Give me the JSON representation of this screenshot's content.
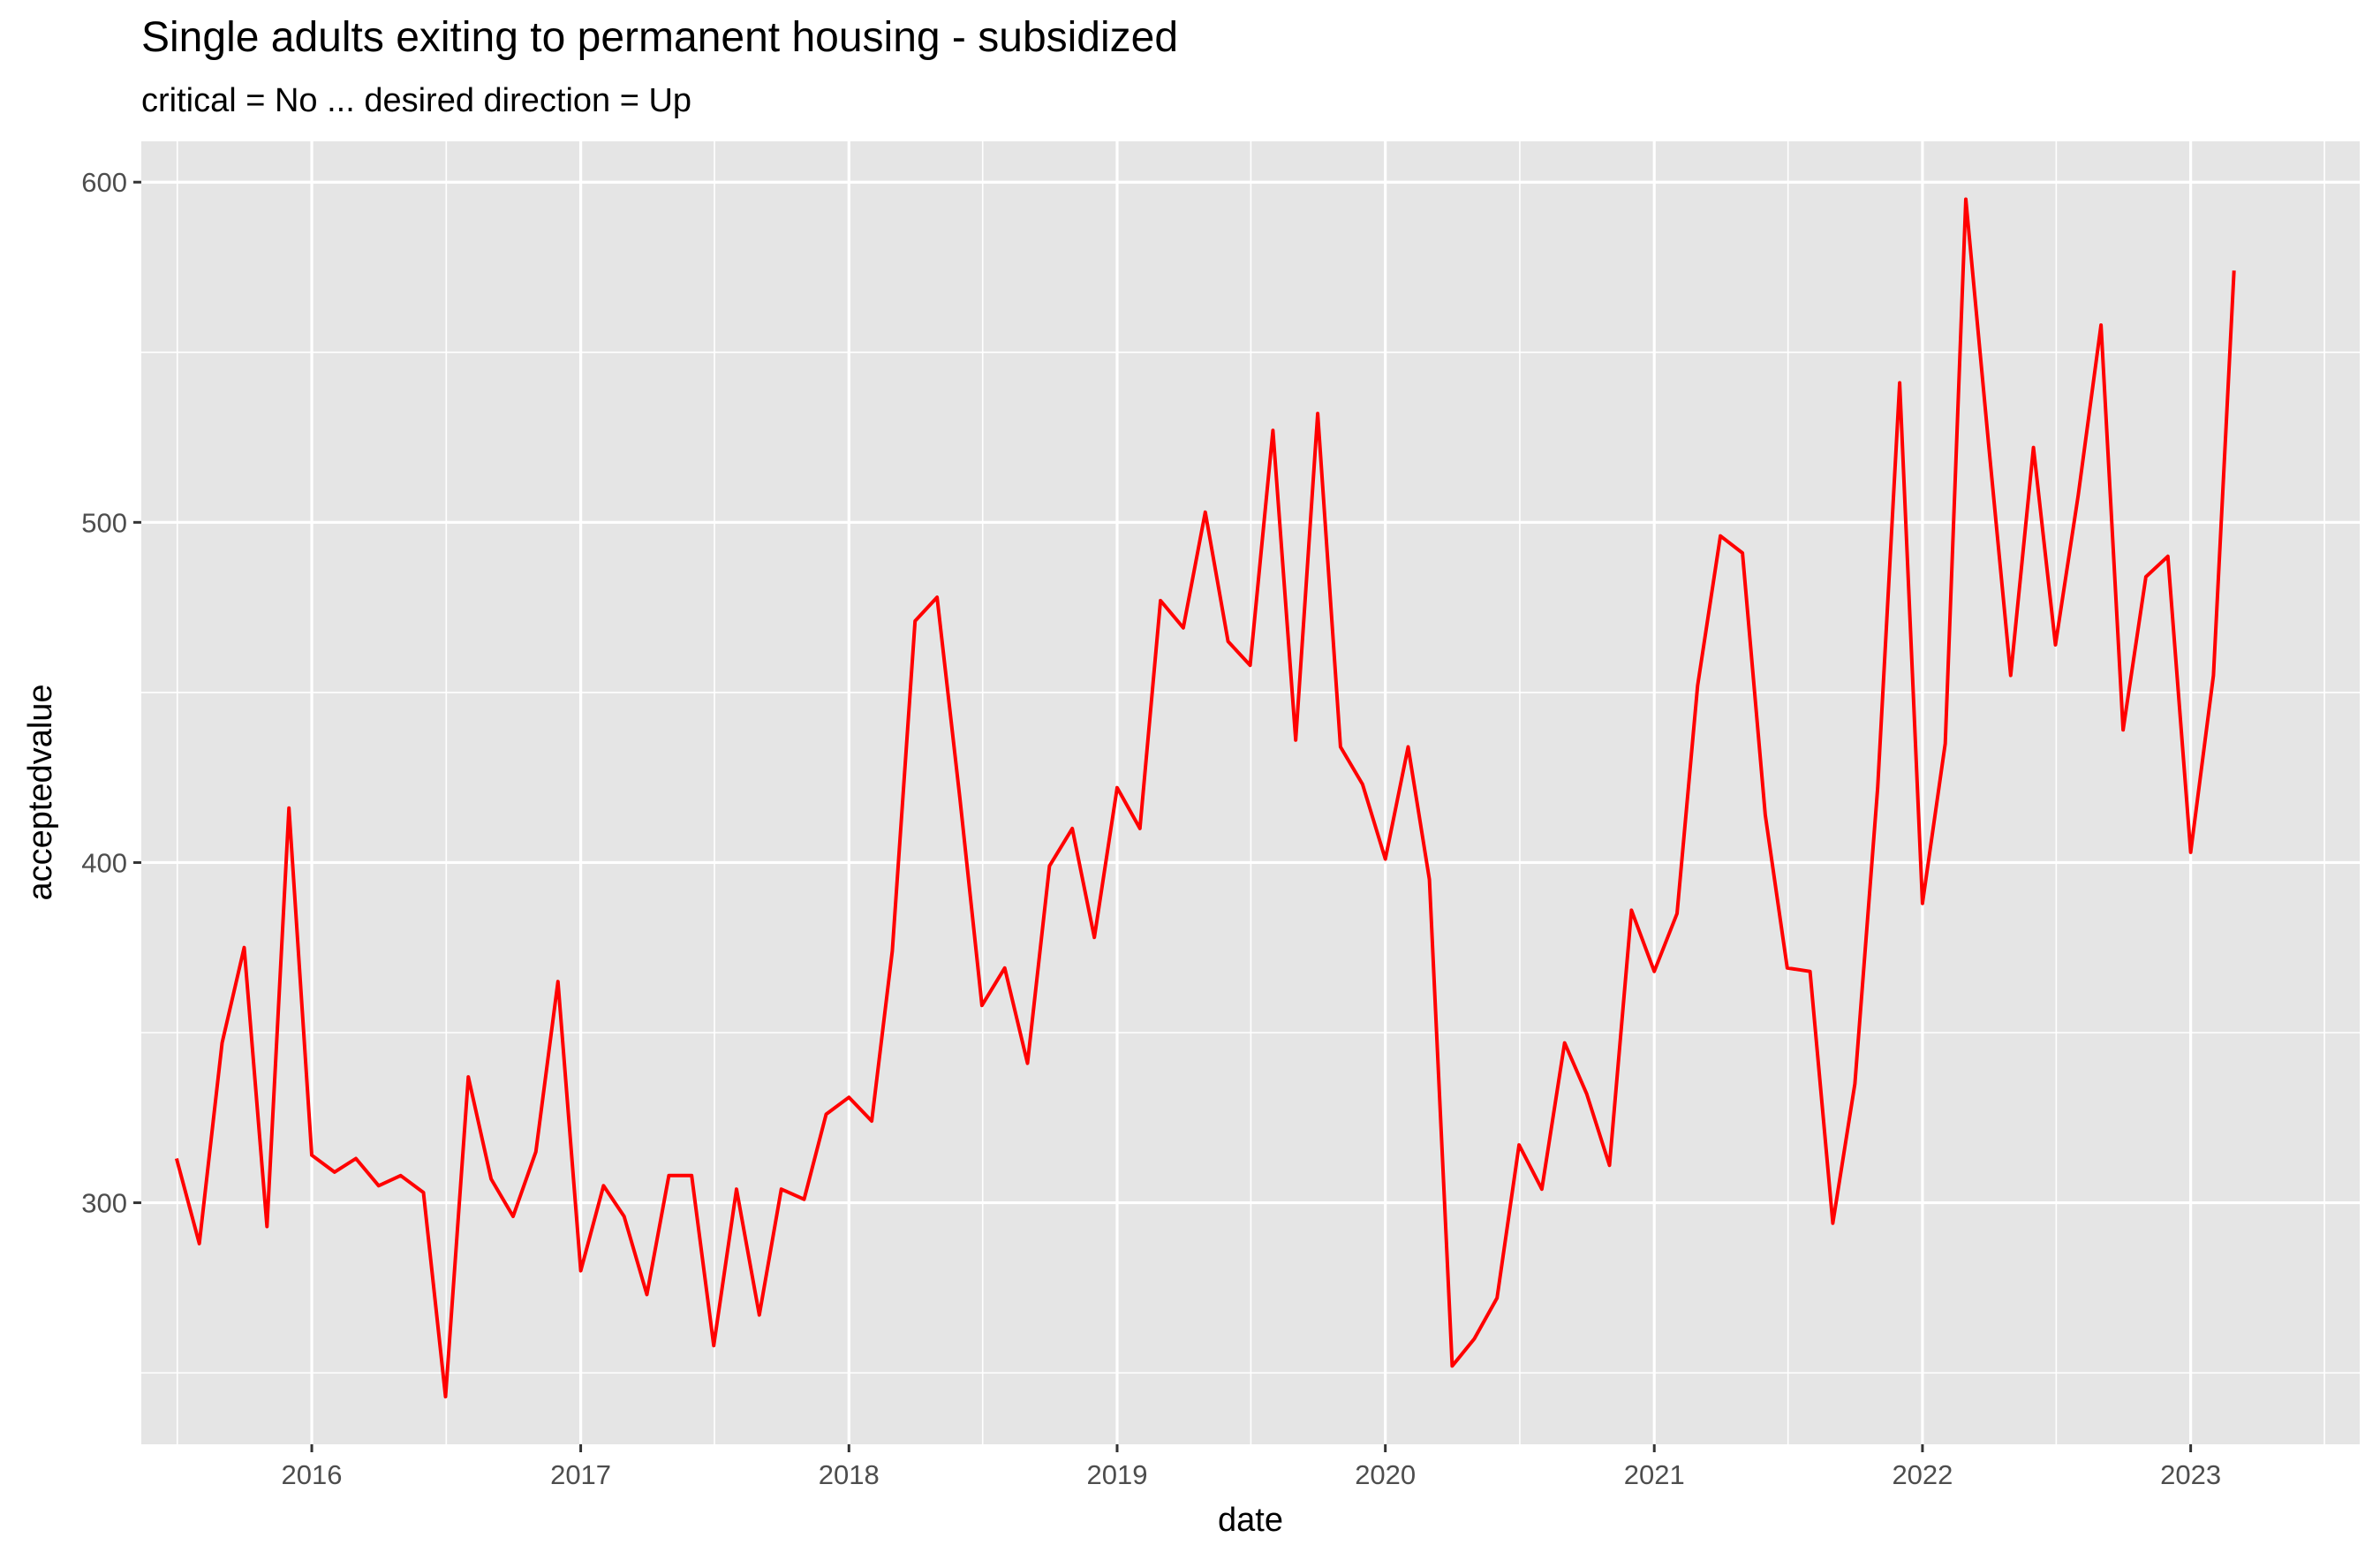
{
  "chart_data": {
    "type": "line",
    "title": "Single adults exiting to permanent housing - subsidized",
    "subtitle": "critical = No ... desired direction = Up",
    "xlabel": "date",
    "ylabel": "acceptedvalue",
    "x_ticks": [
      "2016",
      "2017",
      "2018",
      "2019",
      "2020",
      "2021",
      "2022",
      "2023"
    ],
    "y_ticks": [
      300,
      400,
      500,
      600
    ],
    "xlim": [
      "2015-05-14",
      "2023-08-19"
    ],
    "ylim": [
      229,
      612
    ],
    "grid": true,
    "colors": {
      "panel": "#e5e5e5",
      "grid": "#ffffff",
      "line": "#ff0000"
    },
    "series": [
      {
        "x": [
          "2015-07-01",
          "2015-08-01",
          "2015-09-01",
          "2015-10-01",
          "2015-11-01",
          "2015-12-01",
          "2016-01-01",
          "2016-02-01",
          "2016-03-01",
          "2016-04-01",
          "2016-05-01",
          "2016-06-01",
          "2016-07-01",
          "2016-08-01",
          "2016-09-01",
          "2016-10-01",
          "2016-11-01",
          "2016-12-01",
          "2017-01-01",
          "2017-02-01",
          "2017-03-01",
          "2017-04-01",
          "2017-05-01",
          "2017-06-01",
          "2017-07-01",
          "2017-08-01",
          "2017-09-01",
          "2017-10-01",
          "2017-11-01",
          "2017-12-01",
          "2018-01-01",
          "2018-02-01",
          "2018-03-01",
          "2018-04-01",
          "2018-05-01",
          "2018-06-01",
          "2018-07-01",
          "2018-08-01",
          "2018-09-01",
          "2018-10-01",
          "2018-11-01",
          "2018-12-01",
          "2019-01-01",
          "2019-02-01",
          "2019-03-01",
          "2019-04-01",
          "2019-05-01",
          "2019-06-01",
          "2019-07-01",
          "2019-08-01",
          "2019-09-01",
          "2019-10-01",
          "2019-11-01",
          "2019-12-01",
          "2020-01-01",
          "2020-02-01",
          "2020-03-01",
          "2020-04-01",
          "2020-05-01",
          "2020-06-01",
          "2020-07-01",
          "2020-08-01",
          "2020-09-01",
          "2020-10-01",
          "2020-11-01",
          "2020-12-01",
          "2021-01-01",
          "2021-02-01",
          "2021-03-01",
          "2021-04-01",
          "2021-05-01",
          "2021-06-01",
          "2021-07-01",
          "2021-08-01",
          "2021-09-01",
          "2021-10-01",
          "2021-11-01",
          "2021-12-01",
          "2022-01-01",
          "2022-02-01",
          "2022-03-01",
          "2022-04-01",
          "2022-05-01",
          "2022-06-01",
          "2022-07-01",
          "2022-08-01",
          "2022-09-01",
          "2022-10-01",
          "2022-11-01",
          "2022-12-01",
          "2023-01-01",
          "2023-02-01",
          "2023-03-01"
        ],
        "y": [
          313,
          288,
          347,
          375,
          293,
          416,
          314,
          309,
          313,
          305,
          308,
          303,
          243,
          337,
          307,
          296,
          315,
          365,
          280,
          305,
          296,
          273,
          308,
          308,
          258,
          304,
          267,
          304,
          301,
          326,
          331,
          324,
          374,
          471,
          478,
          419,
          358,
          369,
          341,
          399,
          410,
          378,
          422,
          410,
          477,
          469,
          503,
          465,
          458,
          527,
          436,
          532,
          434,
          423,
          401,
          434,
          395,
          252,
          260,
          272,
          317,
          304,
          347,
          332,
          311,
          386,
          368,
          385,
          452,
          496,
          491,
          414,
          369,
          368,
          294,
          335,
          422,
          541,
          388,
          435,
          595,
          523,
          455,
          522,
          464,
          508,
          558,
          439,
          484,
          490,
          403,
          455,
          574
        ]
      }
    ]
  }
}
